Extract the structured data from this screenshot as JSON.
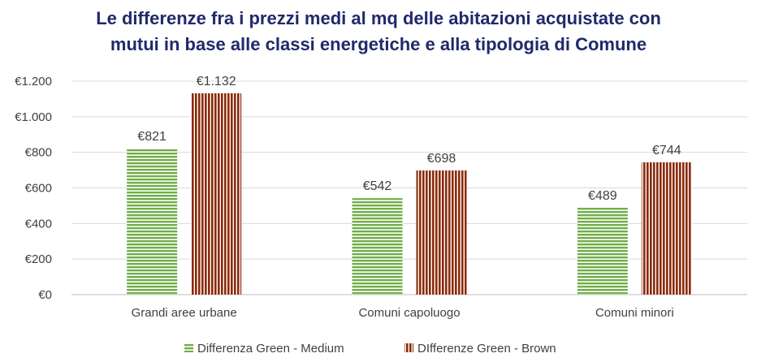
{
  "chart_data": {
    "type": "bar",
    "title_line1": "Le differenze fra i prezzi medi al mq delle abitazioni acquistate con",
    "title_line2": "mutui in base alle classi energetiche e alla tipologia di Comune",
    "categories": [
      "Grandi aree urbane",
      "Comuni capoluogo",
      "Comuni minori"
    ],
    "series": [
      {
        "name": "Differenza Green - Medium",
        "values": [
          821,
          542,
          489
        ],
        "labels": [
          "€821",
          "€542",
          "€489"
        ],
        "color": "#70ad47",
        "pattern": "horizontal-stripes"
      },
      {
        "name": "DIfferenze Green - Brown",
        "values": [
          1132,
          698,
          744
        ],
        "labels": [
          "€1.132",
          "€698",
          "€744"
        ],
        "color": "#8b2a0a",
        "pattern": "vertical-stripes"
      }
    ],
    "ylim": [
      0,
      1200
    ],
    "yticks": [
      0,
      200,
      400,
      600,
      800,
      1000,
      1200
    ],
    "ytick_labels": [
      "€0",
      "€200",
      "€400",
      "€600",
      "€800",
      "€1.000",
      "€1.200"
    ],
    "grid": true,
    "legend_position": "bottom"
  }
}
